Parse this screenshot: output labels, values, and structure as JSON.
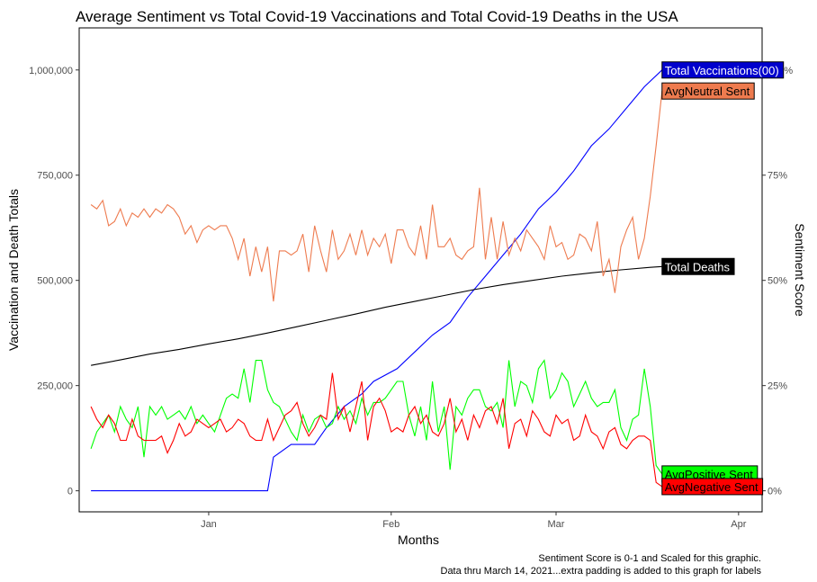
{
  "chart_data": {
    "type": "line",
    "title": "Average Sentiment vs Total Covid-19 Vaccinations and Total Covid-19 Deaths in the USA",
    "xlabel": "Months",
    "ylabel": "Vaccination and Death Totals",
    "y2label": "Sentiment Score",
    "caption_lines": [
      "Sentiment Score is 0-1 and Scaled for this graphic.",
      "Data thru March 14, 2021...extra padding is added to this graph for labels"
    ],
    "x_ticks": [
      {
        "label": "Jan",
        "day": 20
      },
      {
        "label": "Feb",
        "day": 51
      },
      {
        "label": "Mar",
        "day": 79
      },
      {
        "label": "Apr",
        "day": 110
      }
    ],
    "xlim": [
      -2,
      114
    ],
    "ylim": [
      -50000,
      1100000
    ],
    "y_ticks": [
      {
        "label": "0",
        "value": 0
      },
      {
        "label": "250,000",
        "value": 250000
      },
      {
        "label": "500,000",
        "value": 500000
      },
      {
        "label": "750,000",
        "value": 750000
      },
      {
        "label": "1,000,000",
        "value": 1000000
      }
    ],
    "y2_ticks": [
      {
        "label": "0%",
        "value": 0
      },
      {
        "label": "25%",
        "value": 0.25
      },
      {
        "label": "50%",
        "value": 0.5
      },
      {
        "label": "75%",
        "value": 0.75
      },
      {
        "label": "100%",
        "value": 1.0
      }
    ],
    "y2_scale": 1000000,
    "grid": false,
    "series": [
      {
        "name": "Total Vaccinations(00)",
        "axis": "left",
        "color": "#0000ff",
        "label_bg": "#0000cd",
        "label_fg": "#ffffff",
        "x": [
          0,
          30,
          31,
          34,
          38,
          40,
          43,
          46,
          48,
          52,
          55,
          58,
          61,
          64,
          67,
          70,
          73,
          76,
          79,
          82,
          85,
          88,
          91,
          94,
          97
        ],
        "y": [
          0,
          0,
          80000,
          110000,
          110000,
          150000,
          200000,
          230000,
          260000,
          290000,
          330000,
          370000,
          400000,
          460000,
          510000,
          560000,
          610000,
          670000,
          710000,
          760000,
          820000,
          860000,
          910000,
          960000,
          1000000
        ]
      },
      {
        "name": "Total Deaths",
        "axis": "left",
        "color": "#000000",
        "label_bg": "#000000",
        "label_fg": "#ffffff",
        "x": [
          0,
          5,
          10,
          15,
          20,
          25,
          30,
          35,
          40,
          45,
          50,
          55,
          60,
          65,
          70,
          75,
          80,
          85,
          90,
          95,
          97
        ],
        "y": [
          298000,
          311000,
          325000,
          336000,
          349000,
          361000,
          375000,
          390000,
          405000,
          420000,
          436000,
          450000,
          464000,
          478000,
          490000,
          500000,
          510000,
          518000,
          525000,
          531000,
          533000
        ]
      },
      {
        "name": "AvgNeutral Sent",
        "axis": "right",
        "color": "#ee7b4f",
        "label_bg": "#ee7b4f",
        "label_fg": "#000000",
        "x": [
          0,
          1,
          2,
          3,
          4,
          5,
          6,
          7,
          8,
          9,
          10,
          11,
          12,
          13,
          14,
          15,
          16,
          17,
          18,
          19,
          20,
          21,
          22,
          23,
          24,
          25,
          26,
          27,
          28,
          29,
          30,
          31,
          32,
          33,
          34,
          35,
          36,
          37,
          38,
          39,
          40,
          41,
          42,
          43,
          44,
          45,
          46,
          47,
          48,
          49,
          50,
          51,
          52,
          53,
          54,
          55,
          56,
          57,
          58,
          59,
          60,
          61,
          62,
          63,
          64,
          65,
          66,
          67,
          68,
          69,
          70,
          71,
          72,
          73,
          74,
          75,
          76,
          77,
          78,
          79,
          80,
          81,
          82,
          83,
          84,
          85,
          86,
          87,
          88,
          89,
          90,
          91,
          92,
          93,
          94,
          95,
          96,
          97
        ],
        "y": [
          0.68,
          0.67,
          0.69,
          0.63,
          0.64,
          0.67,
          0.63,
          0.66,
          0.65,
          0.67,
          0.65,
          0.67,
          0.66,
          0.68,
          0.67,
          0.65,
          0.61,
          0.63,
          0.59,
          0.62,
          0.63,
          0.62,
          0.63,
          0.63,
          0.6,
          0.55,
          0.6,
          0.51,
          0.58,
          0.52,
          0.58,
          0.45,
          0.57,
          0.57,
          0.56,
          0.57,
          0.61,
          0.52,
          0.63,
          0.57,
          0.52,
          0.62,
          0.55,
          0.57,
          0.61,
          0.56,
          0.62,
          0.56,
          0.6,
          0.58,
          0.61,
          0.54,
          0.62,
          0.62,
          0.58,
          0.56,
          0.63,
          0.55,
          0.68,
          0.58,
          0.58,
          0.6,
          0.56,
          0.55,
          0.57,
          0.58,
          0.72,
          0.55,
          0.65,
          0.55,
          0.64,
          0.56,
          0.6,
          0.57,
          0.62,
          0.6,
          0.58,
          0.55,
          0.63,
          0.58,
          0.59,
          0.55,
          0.56,
          0.61,
          0.6,
          0.57,
          0.64,
          0.51,
          0.55,
          0.47,
          0.58,
          0.62,
          0.65,
          0.55,
          0.6,
          0.7,
          0.82,
          0.95
        ]
      },
      {
        "name": "AvgPositive Sent",
        "axis": "right",
        "color": "#00ff00",
        "label_bg": "#00ff00",
        "label_fg": "#000000",
        "x": [
          0,
          1,
          2,
          3,
          4,
          5,
          6,
          7,
          8,
          9,
          10,
          11,
          12,
          13,
          14,
          15,
          16,
          17,
          18,
          19,
          20,
          21,
          22,
          23,
          24,
          25,
          26,
          27,
          28,
          29,
          30,
          31,
          32,
          33,
          34,
          35,
          36,
          37,
          38,
          39,
          40,
          41,
          42,
          43,
          44,
          45,
          46,
          47,
          48,
          49,
          50,
          51,
          52,
          53,
          54,
          55,
          56,
          57,
          58,
          59,
          60,
          61,
          62,
          63,
          64,
          65,
          66,
          67,
          68,
          69,
          70,
          71,
          72,
          73,
          74,
          75,
          76,
          77,
          78,
          79,
          80,
          81,
          82,
          83,
          84,
          85,
          86,
          87,
          88,
          89,
          90,
          91,
          92,
          93,
          94,
          95,
          96,
          97
        ],
        "y": [
          0.1,
          0.14,
          0.16,
          0.18,
          0.14,
          0.2,
          0.17,
          0.15,
          0.2,
          0.08,
          0.2,
          0.18,
          0.2,
          0.17,
          0.18,
          0.19,
          0.17,
          0.2,
          0.16,
          0.18,
          0.16,
          0.14,
          0.18,
          0.22,
          0.23,
          0.22,
          0.29,
          0.21,
          0.31,
          0.31,
          0.24,
          0.21,
          0.2,
          0.17,
          0.14,
          0.12,
          0.18,
          0.14,
          0.17,
          0.18,
          0.15,
          0.16,
          0.2,
          0.17,
          0.19,
          0.16,
          0.22,
          0.18,
          0.21,
          0.21,
          0.22,
          0.24,
          0.26,
          0.26,
          0.18,
          0.13,
          0.2,
          0.12,
          0.26,
          0.14,
          0.2,
          0.05,
          0.2,
          0.18,
          0.22,
          0.24,
          0.24,
          0.2,
          0.19,
          0.21,
          0.15,
          0.31,
          0.2,
          0.26,
          0.25,
          0.21,
          0.29,
          0.31,
          0.22,
          0.24,
          0.28,
          0.26,
          0.2,
          0.23,
          0.26,
          0.22,
          0.2,
          0.21,
          0.21,
          0.24,
          0.15,
          0.12,
          0.17,
          0.18,
          0.29,
          0.2,
          0.06,
          0.04
        ]
      },
      {
        "name": "AvgNegative Sent",
        "axis": "right",
        "color": "#ff0000",
        "label_bg": "#ff0000",
        "label_fg": "#000000",
        "x": [
          0,
          1,
          2,
          3,
          4,
          5,
          6,
          7,
          8,
          9,
          10,
          11,
          12,
          13,
          14,
          15,
          16,
          17,
          18,
          19,
          20,
          21,
          22,
          23,
          24,
          25,
          26,
          27,
          28,
          29,
          30,
          31,
          32,
          33,
          34,
          35,
          36,
          37,
          38,
          39,
          40,
          41,
          42,
          43,
          44,
          45,
          46,
          47,
          48,
          49,
          50,
          51,
          52,
          53,
          54,
          55,
          56,
          57,
          58,
          59,
          60,
          61,
          62,
          63,
          64,
          65,
          66,
          67,
          68,
          69,
          70,
          71,
          72,
          73,
          74,
          75,
          76,
          77,
          78,
          79,
          80,
          81,
          82,
          83,
          84,
          85,
          86,
          87,
          88,
          89,
          90,
          91,
          92,
          93,
          94,
          95,
          96,
          97
        ],
        "y": [
          0.2,
          0.17,
          0.15,
          0.18,
          0.16,
          0.12,
          0.12,
          0.17,
          0.13,
          0.12,
          0.12,
          0.12,
          0.13,
          0.09,
          0.12,
          0.16,
          0.13,
          0.14,
          0.17,
          0.16,
          0.15,
          0.16,
          0.17,
          0.14,
          0.15,
          0.17,
          0.16,
          0.13,
          0.12,
          0.12,
          0.17,
          0.12,
          0.15,
          0.18,
          0.19,
          0.21,
          0.16,
          0.13,
          0.15,
          0.18,
          0.17,
          0.28,
          0.17,
          0.2,
          0.14,
          0.2,
          0.26,
          0.12,
          0.2,
          0.22,
          0.19,
          0.14,
          0.15,
          0.14,
          0.18,
          0.2,
          0.16,
          0.18,
          0.14,
          0.13,
          0.16,
          0.22,
          0.14,
          0.17,
          0.12,
          0.18,
          0.15,
          0.19,
          0.2,
          0.16,
          0.22,
          0.1,
          0.16,
          0.17,
          0.13,
          0.19,
          0.17,
          0.14,
          0.13,
          0.18,
          0.16,
          0.17,
          0.12,
          0.13,
          0.18,
          0.14,
          0.13,
          0.1,
          0.14,
          0.15,
          0.11,
          0.1,
          0.12,
          0.13,
          0.13,
          0.12,
          0.02,
          0.01
        ]
      }
    ]
  }
}
